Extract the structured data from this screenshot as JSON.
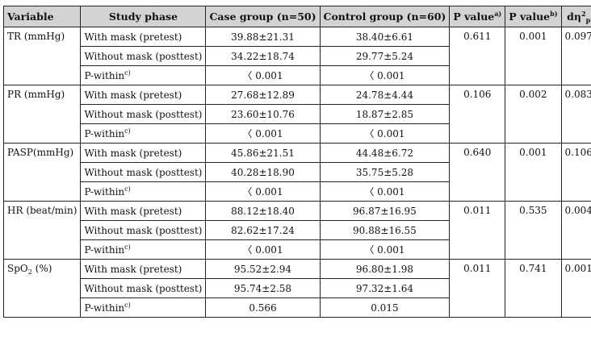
{
  "header": {
    "variable": "Variable",
    "phase": "Study phase",
    "case": "Case group (n=50)",
    "control": "Control group (n=60)",
    "p_a": "P value",
    "p_a_sup": "a)",
    "p_b": "P value",
    "p_b_sup": "b)",
    "eta": "dη",
    "eta_sup": "2",
    "eta_sub": "p"
  },
  "rows": {
    "tr": {
      "name": "TR (mmHg)",
      "with_label": "With mask (pretest)",
      "with_case": "39.88±21.31",
      "with_control": "38.40±6.61",
      "p_a": "0.611",
      "p_b": "0.001",
      "eta": "0.097",
      "without_label": "Without mask (posttest)",
      "without_case": "34.22±18.74",
      "without_control": "29.77±5.24",
      "pw_label": "P-within",
      "pw_sup": "c)",
      "pw_case": "〈 0.001",
      "pw_control": "〈 0.001"
    },
    "pr": {
      "name": "PR (mmHg)",
      "with_label": "With mask (pretest)",
      "with_case": "27.68±12.89",
      "with_control": "24.78±4.44",
      "p_a": "0.106",
      "p_b": "0.002",
      "eta": "0.083",
      "without_label": "Without mask (posttest)",
      "without_case": "23.60±10.76",
      "without_control": "18.87±2.85",
      "pw_label": "P-within",
      "pw_sup": "c)",
      "pw_case": "〈 0.001",
      "pw_control": "〈 0.001"
    },
    "pasp": {
      "name": "PASP(mmHg)",
      "with_label": "With mask (pretest)",
      "with_case": "45.86±21.51",
      "with_control": "44.48±6.72",
      "p_a": "0.640",
      "p_b": "0.001",
      "eta": "0.106",
      "without_label": "Without mask (posttest)",
      "without_case": "40.28±18.90",
      "without_control": "35.75±5.28",
      "pw_label": "P-within",
      "pw_sup": "c)",
      "pw_case": "〈 0.001",
      "pw_control": "〈 0.001"
    },
    "hr": {
      "name": "HR (beat/min)",
      "with_label": "With mask (pretest)",
      "with_case": "88.12±18.40",
      "with_control": "96.87±16.95",
      "p_a": "0.011",
      "p_b": "0.535",
      "eta": "0.004",
      "without_label": "Without mask (posttest)",
      "without_case": "82.62±17.24",
      "without_control": "90.88±16.55",
      "pw_label": "P-within",
      "pw_sup": "c)",
      "pw_case": "〈 0.001",
      "pw_control": "〈 0.001"
    },
    "spo2": {
      "name": "SpO",
      "name_sub": "2",
      "name_unit": " (%)",
      "with_label": "With mask (pretest)",
      "with_case": "95.52±2.94",
      "with_control": "96.80±1.98",
      "p_a": "0.011",
      "p_b": "0.741",
      "eta": "0.001",
      "without_label": "Without mask (posttest)",
      "without_case": "95.74±2.58",
      "without_control": "97.32±1.64",
      "pw_label": "P-within",
      "pw_sup": "c)",
      "pw_case": "0.566",
      "pw_control": "0.015"
    }
  }
}
